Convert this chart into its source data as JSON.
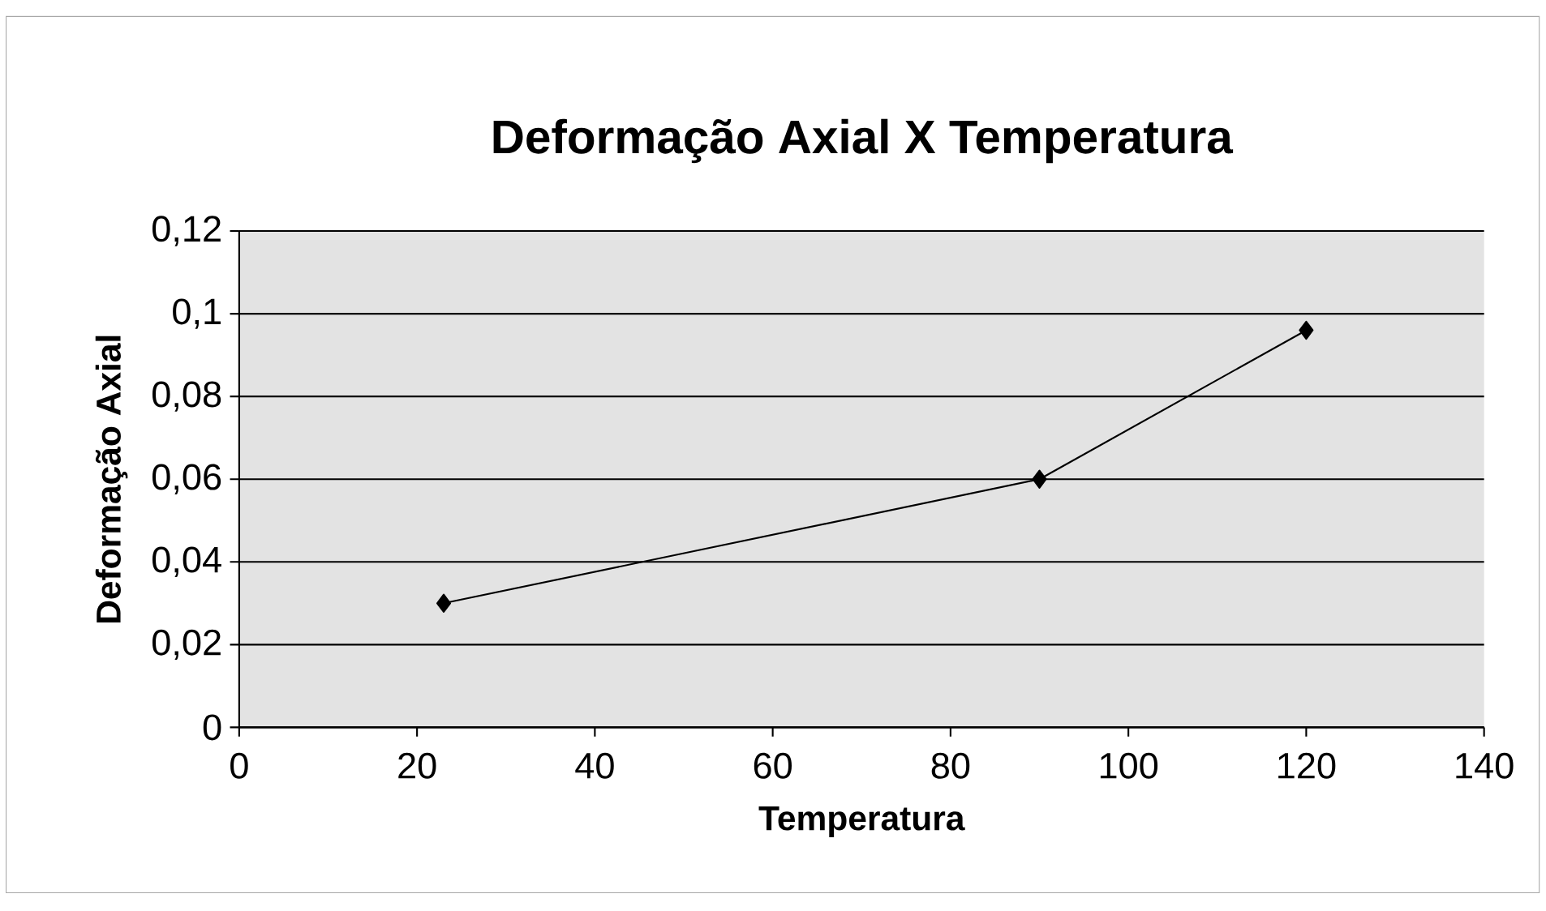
{
  "chart_data": {
    "type": "line",
    "title": "Deformação Axial X Temperatura",
    "xlabel": "Temperatura",
    "ylabel": "Deformação Axial",
    "x": [
      23,
      90,
      120
    ],
    "series": [
      {
        "color": "#000000",
        "values": [
          0.03,
          0.06,
          0.096
        ]
      }
    ],
    "xlim": [
      0,
      140
    ],
    "xticks": [
      0,
      20,
      40,
      60,
      80,
      100,
      120,
      140
    ],
    "ylim": [
      0,
      0.12
    ],
    "yticks": [
      {
        "value": 0,
        "label": "0"
      },
      {
        "value": 0.02,
        "label": "0,02"
      },
      {
        "value": 0.04,
        "label": "0,04"
      },
      {
        "value": 0.06,
        "label": "0,06"
      },
      {
        "value": 0.08,
        "label": "0,08"
      },
      {
        "value": 0.1,
        "label": "0,1"
      },
      {
        "value": 0.12,
        "label": "0,12"
      }
    ],
    "grid": "y",
    "legend": false,
    "marker": "diamond",
    "line_style": "solid"
  }
}
